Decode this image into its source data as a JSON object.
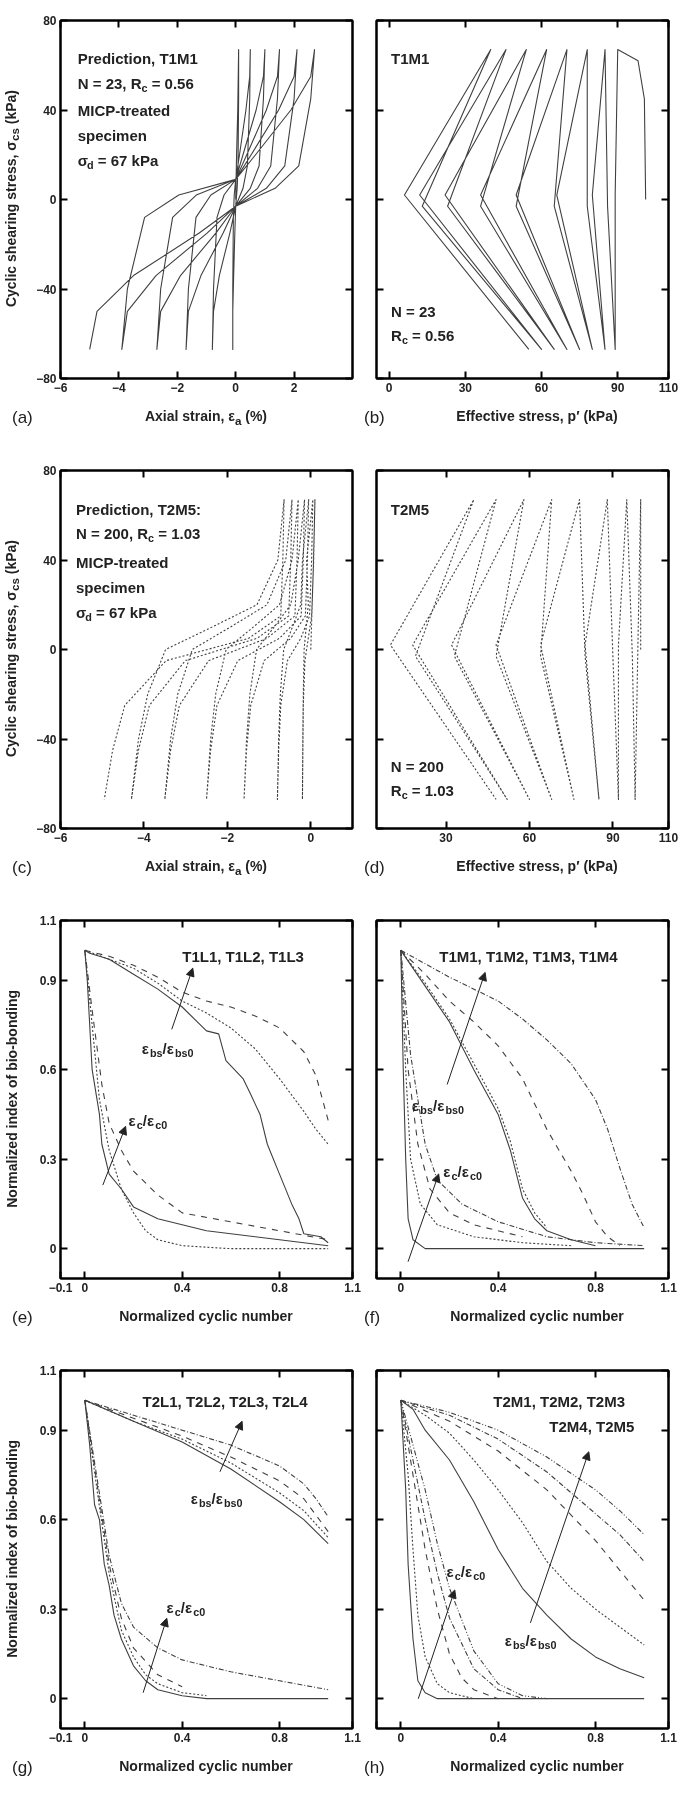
{
  "chart_data": [
    {
      "type": "line",
      "xlabel": "Axial strain, ε$_{a}$ (%)",
      "ylabel": "Cyclic shearing stress, σ$_{cs}$ (kPa)",
      "xlim": [
        -6,
        4
      ],
      "ylim": [
        -80,
        80
      ],
      "xticks": [
        -6,
        -4,
        -2,
        0,
        2
      ],
      "yticks": [
        -80,
        -40,
        0,
        40,
        80
      ],
      "series": [
        {
          "color": "#404040",
          "line_style": "solid",
          "x": [
            0,
            0.03,
            0.07,
            0.1,
            0.1,
            0.08,
            0.05,
            0,
            -0.03,
            -0.07,
            -0.1,
            -0.1,
            -0.1,
            -0.08,
            -0.05,
            0,
            0.13,
            0.35,
            0.48,
            0.5,
            0.48,
            0.4,
            0.25,
            0,
            -0.2,
            -0.56,
            -0.76,
            -0.8,
            -0.76,
            -0.64,
            -0.4,
            0,
            0.25,
            0.7,
            0.95,
            1.0,
            0.95,
            0.8,
            0.5,
            0,
            -0.43,
            -1.19,
            -1.62,
            -1.7,
            -1.62,
            -1.36,
            -0.85,
            0,
            0.38,
            1.05,
            1.43,
            1.5,
            1.43,
            1.2,
            0.75,
            0,
            -0.68,
            -1.89,
            -2.57,
            -2.7,
            -2.57,
            -2.16,
            -1.35,
            0,
            0.53,
            1.47,
            2.0,
            2.1,
            2.0,
            1.68,
            1.05,
            0,
            -0.98,
            -2.73,
            -3.71,
            -3.9,
            -3.71,
            -3.12,
            -1.95,
            0,
            0.68,
            1.89,
            2.57,
            2.7,
            2.57,
            2.16,
            1.35,
            0,
            -1.25,
            -3.5,
            -4.75,
            -5.0
          ],
          "values": [
            0,
            20,
            40,
            67,
            45,
            15,
            5,
            -3,
            -15,
            -34,
            -50,
            -67,
            -40,
            -8,
            2,
            9,
            20,
            40,
            55,
            67,
            45,
            15,
            5,
            -3,
            -15,
            -34,
            -50,
            -67,
            -40,
            -8,
            2,
            9,
            20,
            40,
            55,
            67,
            45,
            15,
            5,
            -3,
            -15,
            -34,
            -50,
            -67,
            -40,
            -8,
            2,
            9,
            20,
            40,
            55,
            67,
            45,
            15,
            5,
            -3,
            -15,
            -34,
            -50,
            -67,
            -40,
            -8,
            2,
            9,
            20,
            40,
            55,
            67,
            45,
            15,
            5,
            -3,
            -15,
            -34,
            -50,
            -67,
            -40,
            -8,
            2,
            9,
            20,
            40,
            55,
            67,
            45,
            15,
            5,
            -3,
            -15,
            -34,
            -50,
            -67
          ]
        }
      ],
      "annotations": [
        "(a)",
        "Prediction, T1M1",
        "N = 23, R$_{c}$ = 0.56",
        "MICP-treated",
        "specimen",
        "σ$_{d}$ = 67 kPa"
      ]
    },
    {
      "type": "line",
      "xlabel": "Effective stress, p′ (kPa)",
      "xlim": [
        -5,
        110
      ],
      "ylim": [
        -80,
        80
      ],
      "xticks": [
        0,
        30,
        60,
        90,
        110
      ],
      "yticks": [
        -80,
        -40,
        0,
        40,
        80
      ],
      "tick_labels": "x",
      "series": [
        {
          "color": "#404040",
          "line_style": "solid",
          "x": [
            101,
            100.5,
            98,
            90,
            89,
            89,
            86,
            85,
            80,
            85,
            78,
            78,
            66,
            80,
            65,
            70,
            50,
            75,
            50,
            62,
            36,
            70,
            36,
            54,
            22,
            65,
            23,
            46,
            12,
            60,
            13,
            40,
            6,
            55
          ],
          "values": [
            0,
            45,
            62,
            67,
            2,
            -67,
            -3,
            67,
            2,
            -67,
            -3,
            67,
            2,
            -67,
            -3,
            67,
            2,
            -67,
            -3,
            67,
            2,
            -67,
            -3,
            67,
            2,
            -67,
            -3,
            67,
            2,
            -67,
            -3,
            67,
            2,
            -67
          ]
        }
      ],
      "annotations": [
        "(b)",
        "T1M1",
        "N = 23",
        "R$_{c}$ = 0.56"
      ]
    },
    {
      "type": "line",
      "xlabel": "Axial strain, ε$_{a}$ (%)",
      "ylabel": "Cyclic shearing stress, σ$_{cs}$ (kPa)",
      "xlim": [
        -6,
        1
      ],
      "ylim": [
        -80,
        80
      ],
      "xticks": [
        -6,
        -4,
        -2,
        0
      ],
      "yticks": [
        -80,
        -40,
        0,
        40,
        80
      ],
      "series": [
        {
          "color": "#404040",
          "line_style": "dotted",
          "x": [
            0,
            0.05,
            0.1,
            0.07,
            0.02,
            -0.06,
            -0.14,
            -0.18,
            -0.19,
            -0.2,
            -0.19,
            -0.18,
            -0.16,
            -0.11,
            -0.06,
            -0.1,
            0.05,
            0.02,
            -0.03,
            -0.24,
            -0.56,
            -0.72,
            -0.77,
            -0.8,
            -0.77,
            -0.73,
            -0.65,
            -0.44,
            -0.24,
            -0.2,
            -0.05,
            -0.08,
            -0.13,
            -0.48,
            -1.12,
            -1.44,
            -1.54,
            -1.6,
            -1.54,
            -1.46,
            -1.3,
            -0.88,
            -0.48,
            -0.3,
            -0.15,
            -0.18,
            -0.23,
            -0.75,
            -1.75,
            -2.25,
            -2.4,
            -2.5,
            -2.4,
            -2.28,
            -2.03,
            -1.38,
            -0.75,
            -0.45,
            -0.3,
            -0.33,
            -0.38,
            -1.05,
            -2.45,
            -3.15,
            -3.36,
            -3.5,
            -3.36,
            -3.19,
            -2.84,
            -1.93,
            -1.05,
            -0.6,
            -0.45,
            -0.48,
            -0.53,
            -1.29,
            -3.01,
            -3.87,
            -4.13,
            -4.3,
            -4.13,
            -3.91,
            -3.48,
            -2.37,
            -1.29,
            -0.79,
            -0.64,
            -0.67,
            -0.72,
            -1.49,
            -3.47,
            -4.46,
            -4.75,
            -4.95
          ],
          "values": [
            0,
            30,
            67,
            40,
            15,
            5,
            -5,
            -25,
            -45,
            -67,
            -40,
            -20,
            0,
            10,
            20,
            40,
            67,
            40,
            15,
            5,
            -5,
            -25,
            -45,
            -67,
            -40,
            -20,
            0,
            10,
            20,
            40,
            67,
            40,
            15,
            5,
            -5,
            -25,
            -45,
            -67,
            -40,
            -20,
            0,
            10,
            20,
            40,
            67,
            40,
            15,
            5,
            -5,
            -25,
            -45,
            -67,
            -40,
            -20,
            0,
            10,
            20,
            40,
            67,
            40,
            15,
            5,
            -5,
            -25,
            -45,
            -67,
            -40,
            -20,
            0,
            10,
            20,
            40,
            67,
            40,
            15,
            5,
            -5,
            -25,
            -45,
            -67,
            -40,
            -20,
            0,
            10,
            20,
            40,
            67,
            40,
            15,
            5,
            -5,
            -25,
            -45,
            -67
          ]
        }
      ],
      "annotations": [
        "(c)",
        "Prediction, T2M5:",
        "N = 200, R$_{c}$ = 1.03",
        "MICP-treated",
        "specimen",
        "σ$_{d}$ = 67 kPa"
      ]
    },
    {
      "type": "line",
      "xlabel": "Effective stress, p′ (kPa)",
      "xlim": [
        5,
        110
      ],
      "ylim": [
        -80,
        80
      ],
      "xticks": [
        30,
        60,
        90,
        110
      ],
      "yticks": [
        -80,
        -40,
        0,
        40,
        80
      ],
      "tick_labels": "x",
      "series": [
        {
          "color": "#404040",
          "line_style": "dotted",
          "x": [
            100,
            100,
            99,
            98,
            97,
            95,
            92,
            92,
            90,
            88,
            80,
            85,
            80,
            78,
            64,
            76,
            64,
            68,
            48,
            68,
            48,
            58,
            32,
            60,
            33,
            48,
            18,
            52,
            19,
            40,
            10,
            48
          ],
          "values": [
            0,
            67,
            2,
            -67,
            -3,
            67,
            2,
            -67,
            -3,
            67,
            2,
            -67,
            -3,
            67,
            2,
            -67,
            -3,
            67,
            2,
            -67,
            -3,
            67,
            2,
            -67,
            -3,
            67,
            2,
            -67,
            -3,
            67,
            2,
            -67
          ]
        }
      ],
      "annotations": [
        "(d)",
        "T2M5",
        "N = 200",
        "R$_{c}$ = 1.03"
      ]
    },
    {
      "type": "line",
      "xlabel": "Normalized cyclic number",
      "ylabel": "Normalized index of bio-bonding",
      "xlim": [
        -0.1,
        1.1
      ],
      "ylim": [
        -0.1,
        1.1
      ],
      "xticks": [
        -0.1,
        0,
        0.4,
        0.8,
        1.1
      ],
      "yticks": [
        0,
        0.3,
        0.6,
        0.9,
        1.1
      ],
      "series": [
        {
          "color": "#404040",
          "line_style": "solid",
          "x": [
            0,
            0.02,
            0.1,
            0.2,
            0.3,
            0.4,
            0.5,
            0.55,
            0.58,
            0.65,
            0.68,
            0.72,
            0.75,
            0.8,
            0.85,
            0.88,
            0.9,
            0.97,
            1.0
          ],
          "values": [
            1,
            0.99,
            0.97,
            0.92,
            0.87,
            0.81,
            0.73,
            0.72,
            0.63,
            0.57,
            0.52,
            0.45,
            0.35,
            0.25,
            0.15,
            0.1,
            0.05,
            0.04,
            0.02
          ]
        },
        {
          "color": "#404040",
          "line_style": "dotted",
          "x": [
            0,
            0.1,
            0.2,
            0.3,
            0.4,
            0.5,
            0.6,
            0.7,
            0.8,
            0.9,
            0.95,
            1.0
          ],
          "values": [
            1,
            0.97,
            0.94,
            0.89,
            0.83,
            0.79,
            0.74,
            0.67,
            0.57,
            0.46,
            0.4,
            0.35
          ]
        },
        {
          "color": "#404040",
          "line_style": "dashed",
          "x": [
            0,
            0.1,
            0.2,
            0.3,
            0.4,
            0.5,
            0.6,
            0.7,
            0.8,
            0.9,
            0.95,
            1.0
          ],
          "values": [
            1,
            0.98,
            0.95,
            0.91,
            0.86,
            0.83,
            0.81,
            0.78,
            0.74,
            0.66,
            0.58,
            0.43
          ]
        },
        {
          "color": "#404040",
          "line_style": "solid",
          "x": [
            0,
            0.01,
            0.03,
            0.06,
            0.07,
            0.1,
            0.15,
            0.2,
            0.3,
            0.4,
            0.5,
            0.7,
            0.9,
            1.0
          ],
          "values": [
            1,
            0.9,
            0.6,
            0.45,
            0.35,
            0.25,
            0.2,
            0.14,
            0.1,
            0.08,
            0.06,
            0.04,
            0.02,
            0.01
          ]
        },
        {
          "color": "#404040",
          "line_style": "dotted",
          "x": [
            0,
            0.03,
            0.06,
            0.1,
            0.15,
            0.2,
            0.25,
            0.3,
            0.4,
            0.6,
            1.0
          ],
          "values": [
            1,
            0.75,
            0.5,
            0.33,
            0.2,
            0.12,
            0.06,
            0.03,
            0.01,
            0,
            0
          ]
        },
        {
          "color": "#404040",
          "line_style": "dashed",
          "x": [
            0,
            0.03,
            0.07,
            0.1,
            0.15,
            0.2,
            0.3,
            0.4,
            0.6,
            0.8,
            1.0
          ],
          "values": [
            1,
            0.8,
            0.55,
            0.42,
            0.33,
            0.26,
            0.18,
            0.12,
            0.09,
            0.06,
            0.03
          ]
        }
      ],
      "annotations": [
        "(e)",
        "T1L1, T1L2, T1L3",
        "ε$_{bs}$/ε$_{bs0}$",
        "ε$_{c}$/ε$_{c0}$"
      ]
    },
    {
      "type": "line",
      "xlabel": "Normalized cyclic number",
      "xlim": [
        -0.1,
        1.1
      ],
      "ylim": [
        -0.1,
        1.1
      ],
      "xticks": [
        {
          "value": -0.1,
          "label": null
        },
        0,
        0.4,
        0.8,
        1.1
      ],
      "yticks": [
        0,
        0.3,
        0.6,
        0.9,
        1.1
      ],
      "tick_labels": "x",
      "series": [
        {
          "color": "#404040",
          "line_style": "solid",
          "x": [
            0,
            0.1,
            0.2,
            0.3,
            0.4,
            0.45,
            0.5,
            0.55,
            0.6,
            0.7,
            0.8
          ],
          "values": [
            1,
            0.88,
            0.76,
            0.6,
            0.45,
            0.33,
            0.17,
            0.1,
            0.06,
            0.03,
            0.01
          ]
        },
        {
          "color": "#404040",
          "line_style": "dotted",
          "x": [
            0,
            0.1,
            0.2,
            0.3,
            0.4,
            0.45,
            0.5,
            0.55,
            0.6
          ],
          "values": [
            1,
            0.89,
            0.77,
            0.62,
            0.47,
            0.36,
            0.2,
            0.12,
            0.07
          ]
        },
        {
          "color": "#404040",
          "line_style": "dashed",
          "x": [
            0,
            0.1,
            0.2,
            0.3,
            0.4,
            0.5,
            0.6,
            0.7,
            0.75,
            0.8,
            0.85,
            0.9
          ],
          "values": [
            1,
            0.92,
            0.83,
            0.76,
            0.68,
            0.57,
            0.4,
            0.26,
            0.18,
            0.09,
            0.04,
            0.01
          ]
        },
        {
          "color": "#404040",
          "line_style": "dashdot",
          "x": [
            0,
            0.2,
            0.4,
            0.5,
            0.6,
            0.7,
            0.8,
            0.85,
            0.9,
            0.95,
            1.0
          ],
          "values": [
            1,
            0.91,
            0.83,
            0.77,
            0.7,
            0.62,
            0.5,
            0.4,
            0.27,
            0.15,
            0.07
          ]
        },
        {
          "color": "#404040",
          "line_style": "solid",
          "x": [
            0,
            0.01,
            0.02,
            0.03,
            0.05,
            0.1,
            1.0
          ],
          "values": [
            1,
            0.6,
            0.3,
            0.1,
            0.03,
            0,
            0
          ]
        },
        {
          "color": "#404040",
          "line_style": "dotted",
          "x": [
            0,
            0.02,
            0.04,
            0.08,
            0.15,
            0.3,
            0.5,
            0.7
          ],
          "values": [
            1,
            0.6,
            0.3,
            0.15,
            0.08,
            0.04,
            0.02,
            0.01
          ]
        },
        {
          "color": "#404040",
          "line_style": "dashed",
          "x": [
            0,
            0.03,
            0.07,
            0.12,
            0.2,
            0.3,
            0.5
          ],
          "values": [
            1,
            0.6,
            0.35,
            0.2,
            0.12,
            0.08,
            0.04
          ]
        },
        {
          "color": "#404040",
          "line_style": "dashdot",
          "x": [
            0,
            0.04,
            0.1,
            0.15,
            0.25,
            0.4,
            0.6,
            0.8,
            1.0
          ],
          "values": [
            1,
            0.65,
            0.35,
            0.23,
            0.15,
            0.09,
            0.04,
            0.02,
            0.01
          ]
        }
      ],
      "annotations": [
        "(f)",
        "T1M1, T1M2, T1M3, T1M4",
        "ε$_{bs}$/ε$_{bs0}$",
        "ε$_{c}$/ε$_{c0}$"
      ]
    },
    {
      "type": "line",
      "xlabel": "Normalized cyclic number",
      "ylabel": "Normalized index of bio-bonding",
      "xlim": [
        -0.1,
        1.1
      ],
      "ylim": [
        -0.1,
        1.1
      ],
      "xticks": [
        -0.1,
        0,
        0.4,
        0.8,
        1.1
      ],
      "yticks": [
        0,
        0.3,
        0.6,
        0.9,
        1.1
      ],
      "series": [
        {
          "color": "#404040",
          "line_style": "solid",
          "x": [
            0,
            0.2,
            0.4,
            0.6,
            0.8,
            0.9,
            1.0
          ],
          "values": [
            1,
            0.93,
            0.86,
            0.77,
            0.66,
            0.6,
            0.52
          ]
        },
        {
          "color": "#404040",
          "line_style": "dotted",
          "x": [
            0,
            0.2,
            0.4,
            0.6,
            0.8,
            0.9,
            1.0
          ],
          "values": [
            1,
            0.93,
            0.87,
            0.79,
            0.69,
            0.63,
            0.54
          ]
        },
        {
          "color": "#404040",
          "line_style": "dashed",
          "x": [
            0,
            0.2,
            0.4,
            0.6,
            0.8,
            0.9,
            1.0
          ],
          "values": [
            1,
            0.94,
            0.88,
            0.81,
            0.73,
            0.67,
            0.56
          ]
        },
        {
          "color": "#404040",
          "line_style": "dashdot",
          "x": [
            0,
            0.2,
            0.4,
            0.6,
            0.8,
            0.9,
            0.95,
            1.0
          ],
          "values": [
            1,
            0.95,
            0.9,
            0.85,
            0.78,
            0.72,
            0.67,
            0.61
          ]
        },
        {
          "color": "#404040",
          "line_style": "solid",
          "x": [
            0,
            0.02,
            0.04,
            0.06,
            0.08,
            0.1,
            0.12,
            0.15,
            0.2,
            0.25,
            0.3,
            0.4,
            0.5,
            1.0
          ],
          "values": [
            1,
            0.85,
            0.65,
            0.6,
            0.45,
            0.38,
            0.28,
            0.2,
            0.11,
            0.06,
            0.03,
            0.01,
            0,
            0
          ]
        },
        {
          "color": "#404040",
          "line_style": "dotted",
          "x": [
            0,
            0.05,
            0.1,
            0.15,
            0.2,
            0.25,
            0.3,
            0.4,
            0.5
          ],
          "values": [
            1,
            0.7,
            0.42,
            0.23,
            0.14,
            0.08,
            0.05,
            0.02,
            0.01
          ]
        },
        {
          "color": "#404040",
          "line_style": "dashed",
          "x": [
            0,
            0.05,
            0.1,
            0.15,
            0.2,
            0.3,
            0.4
          ],
          "values": [
            1,
            0.72,
            0.45,
            0.27,
            0.17,
            0.08,
            0.04
          ]
        },
        {
          "color": "#404040",
          "line_style": "dashdot",
          "x": [
            0,
            0.05,
            0.1,
            0.15,
            0.2,
            0.3,
            0.4,
            0.6,
            0.8,
            1.0
          ],
          "values": [
            1,
            0.74,
            0.48,
            0.32,
            0.24,
            0.17,
            0.13,
            0.09,
            0.06,
            0.03
          ]
        }
      ],
      "annotations": [
        "(g)",
        "T2L1, T2L2, T2L3, T2L4",
        "ε$_{bs}$/ε$_{bs0}$",
        "ε$_{c}$/ε$_{c0}$"
      ]
    },
    {
      "type": "line",
      "xlabel": "Normalized cyclic number",
      "xlim": [
        -0.1,
        1.1
      ],
      "ylim": [
        -0.1,
        1.1
      ],
      "xticks": [
        {
          "value": -0.1,
          "label": null
        },
        0,
        0.4,
        0.8,
        1.1
      ],
      "yticks": [
        0,
        0.3,
        0.6,
        0.9,
        1.1
      ],
      "tick_labels": "x",
      "series": [
        {
          "color": "#404040",
          "line_style": "solid",
          "x": [
            0,
            0.05,
            0.1,
            0.2,
            0.3,
            0.4,
            0.5,
            0.6,
            0.7,
            0.8,
            0.9,
            1.0
          ],
          "values": [
            1,
            0.97,
            0.9,
            0.8,
            0.66,
            0.5,
            0.37,
            0.28,
            0.2,
            0.14,
            0.1,
            0.07
          ]
        },
        {
          "color": "#404040",
          "line_style": "dotted",
          "x": [
            0,
            0.1,
            0.2,
            0.3,
            0.4,
            0.5,
            0.6,
            0.7,
            0.8,
            0.9,
            1.0
          ],
          "values": [
            1,
            0.95,
            0.89,
            0.8,
            0.7,
            0.59,
            0.46,
            0.37,
            0.3,
            0.24,
            0.18
          ]
        },
        {
          "color": "#404040",
          "line_style": "dashed",
          "x": [
            0,
            0.2,
            0.4,
            0.6,
            0.8,
            0.9,
            1.0
          ],
          "values": [
            1,
            0.93,
            0.83,
            0.7,
            0.53,
            0.43,
            0.33
          ]
        },
        {
          "color": "#404040",
          "line_style": "dashdot",
          "x": [
            0,
            0.2,
            0.4,
            0.6,
            0.8,
            0.9,
            1.0
          ],
          "values": [
            1,
            0.95,
            0.87,
            0.76,
            0.62,
            0.55,
            0.46
          ]
        },
        {
          "color": "#404040",
          "line_style": "dashdotdot",
          "x": [
            0,
            0.2,
            0.4,
            0.6,
            0.8,
            0.9,
            1.0
          ],
          "values": [
            1,
            0.96,
            0.9,
            0.81,
            0.7,
            0.63,
            0.55
          ]
        },
        {
          "color": "#404040",
          "line_style": "solid",
          "x": [
            0,
            0.02,
            0.03,
            0.05,
            0.07,
            0.1,
            0.15,
            1.0
          ],
          "values": [
            1,
            0.7,
            0.45,
            0.2,
            0.06,
            0.02,
            0,
            0
          ]
        },
        {
          "color": "#404040",
          "line_style": "dotted",
          "x": [
            0,
            0.03,
            0.05,
            0.07,
            0.1,
            0.15,
            0.2,
            0.3
          ],
          "values": [
            1,
            0.75,
            0.5,
            0.28,
            0.14,
            0.05,
            0.02,
            0
          ]
        },
        {
          "color": "#404040",
          "line_style": "dashed",
          "x": [
            0,
            0.05,
            0.1,
            0.15,
            0.2,
            0.25,
            0.3,
            0.4
          ],
          "values": [
            1,
            0.75,
            0.5,
            0.3,
            0.15,
            0.07,
            0.03,
            0
          ]
        },
        {
          "color": "#404040",
          "line_style": "dashdot",
          "x": [
            0,
            0.05,
            0.1,
            0.15,
            0.2,
            0.3,
            0.4,
            0.5
          ],
          "values": [
            1,
            0.8,
            0.6,
            0.42,
            0.27,
            0.1,
            0.03,
            0
          ]
        },
        {
          "color": "#404040",
          "line_style": "dashdotdot",
          "x": [
            0,
            0.05,
            0.1,
            0.15,
            0.2,
            0.3,
            0.4,
            0.5,
            0.6
          ],
          "values": [
            1,
            0.85,
            0.7,
            0.52,
            0.37,
            0.16,
            0.05,
            0.01,
            0
          ]
        }
      ],
      "annotations": [
        "(h)",
        "T2M1, T2M2, T2M3",
        "T2M4, T2M5",
        "ε$_{bs}$/ε$_{bs0}$",
        "ε$_{c}$/ε$_{c0}$"
      ]
    }
  ]
}
